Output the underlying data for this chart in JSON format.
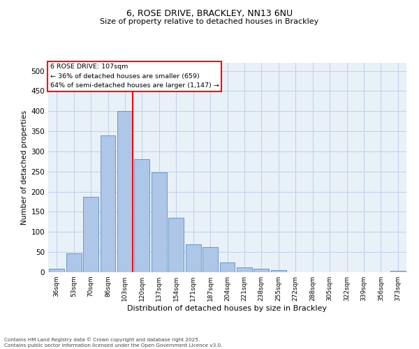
{
  "title": "6, ROSE DRIVE, BRACKLEY, NN13 6NU",
  "subtitle": "Size of property relative to detached houses in Brackley",
  "xlabel": "Distribution of detached houses by size in Brackley",
  "ylabel": "Number of detached properties",
  "bar_labels": [
    "36sqm",
    "53sqm",
    "70sqm",
    "86sqm",
    "103sqm",
    "120sqm",
    "137sqm",
    "154sqm",
    "171sqm",
    "187sqm",
    "204sqm",
    "221sqm",
    "238sqm",
    "255sqm",
    "272sqm",
    "288sqm",
    "305sqm",
    "322sqm",
    "339sqm",
    "356sqm",
    "373sqm"
  ],
  "bar_values": [
    9,
    47,
    187,
    340,
    400,
    280,
    247,
    136,
    69,
    62,
    25,
    13,
    9,
    5,
    0,
    0,
    0,
    0,
    0,
    0,
    3
  ],
  "bar_color": "#aec6e8",
  "bar_edge_color": "#5a8fc2",
  "vline_index": 4,
  "vline_color": "red",
  "annotation_text": "6 ROSE DRIVE: 107sqm\n← 36% of detached houses are smaller (659)\n64% of semi-detached houses are larger (1,147) →",
  "annotation_box_color": "white",
  "annotation_box_edge_color": "red",
  "ylim": [
    0,
    520
  ],
  "yticks": [
    0,
    50,
    100,
    150,
    200,
    250,
    300,
    350,
    400,
    450,
    500
  ],
  "grid_color": "#c0d0e8",
  "background_color": "#e8f0f8",
  "footer_line1": "Contains HM Land Registry data © Crown copyright and database right 2025.",
  "footer_line2": "Contains public sector information licensed under the Open Government Licence v3.0."
}
